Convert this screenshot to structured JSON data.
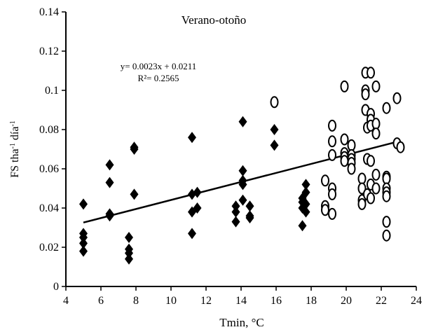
{
  "chart_data": {
    "type": "scatter",
    "title": "Verano-otoño",
    "xlabel": "Tmin, °C",
    "ylabel_parts": [
      "FS tha",
      "-1",
      " día",
      "-1"
    ],
    "xlim": [
      4,
      24
    ],
    "ylim": [
      0,
      0.14
    ],
    "xticks": [
      4,
      6,
      8,
      10,
      12,
      14,
      16,
      18,
      20,
      22,
      24
    ],
    "yticks": [
      0,
      0.02,
      0.04,
      0.06,
      0.08,
      0.1,
      0.12,
      0.14
    ],
    "xtick_labels": [
      "4",
      "6",
      "8",
      "10",
      "12",
      "14",
      "16",
      "18",
      "20",
      "22",
      "24"
    ],
    "ytick_labels": [
      "0",
      "0.02",
      "0.04",
      "0.06",
      "0.08",
      "0.1",
      "0.12",
      "0.14"
    ],
    "grid": false,
    "annotation": {
      "equation": "y= 0.0023x + 0.0211",
      "r2": "R²= 0.2565"
    },
    "trendline": {
      "slope": 0.0023,
      "intercept": 0.0211,
      "x_range": [
        5,
        23
      ]
    },
    "series": [
      {
        "marker": "diamond-filled",
        "points": [
          [
            5.0,
            0.042
          ],
          [
            5.0,
            0.027
          ],
          [
            5.0,
            0.025
          ],
          [
            5.0,
            0.022
          ],
          [
            5.0,
            0.018
          ],
          [
            6.5,
            0.062
          ],
          [
            6.5,
            0.053
          ],
          [
            6.5,
            0.037
          ],
          [
            6.5,
            0.036
          ],
          [
            7.6,
            0.025
          ],
          [
            7.6,
            0.019
          ],
          [
            7.6,
            0.017
          ],
          [
            7.6,
            0.014
          ],
          [
            7.9,
            0.071
          ],
          [
            7.9,
            0.07
          ],
          [
            7.9,
            0.047
          ],
          [
            11.2,
            0.076
          ],
          [
            11.2,
            0.047
          ],
          [
            11.2,
            0.038
          ],
          [
            11.2,
            0.027
          ],
          [
            11.5,
            0.048
          ],
          [
            11.5,
            0.04
          ],
          [
            13.7,
            0.041
          ],
          [
            13.7,
            0.038
          ],
          [
            13.7,
            0.033
          ],
          [
            14.1,
            0.084
          ],
          [
            14.1,
            0.059
          ],
          [
            14.1,
            0.054
          ],
          [
            14.1,
            0.052
          ],
          [
            14.1,
            0.044
          ],
          [
            14.5,
            0.041
          ],
          [
            14.5,
            0.036
          ],
          [
            14.5,
            0.035
          ],
          [
            15.9,
            0.08
          ],
          [
            15.9,
            0.072
          ],
          [
            17.5,
            0.045
          ],
          [
            17.5,
            0.043
          ],
          [
            17.5,
            0.04
          ],
          [
            17.5,
            0.031
          ],
          [
            17.7,
            0.052
          ],
          [
            17.7,
            0.048
          ],
          [
            17.7,
            0.042
          ],
          [
            17.7,
            0.038
          ]
        ]
      },
      {
        "marker": "circle-open",
        "points": [
          [
            15.9,
            0.094
          ],
          [
            18.8,
            0.054
          ],
          [
            18.8,
            0.041
          ],
          [
            18.8,
            0.039
          ],
          [
            19.2,
            0.082
          ],
          [
            19.2,
            0.074
          ],
          [
            19.2,
            0.067
          ],
          [
            19.2,
            0.05
          ],
          [
            19.2,
            0.047
          ],
          [
            19.2,
            0.037
          ],
          [
            19.9,
            0.102
          ],
          [
            19.9,
            0.075
          ],
          [
            19.9,
            0.068
          ],
          [
            19.9,
            0.066
          ],
          [
            19.9,
            0.064
          ],
          [
            20.3,
            0.072
          ],
          [
            20.3,
            0.067
          ],
          [
            20.3,
            0.065
          ],
          [
            20.3,
            0.063
          ],
          [
            20.3,
            0.06
          ],
          [
            20.9,
            0.055
          ],
          [
            20.9,
            0.05
          ],
          [
            20.9,
            0.044
          ],
          [
            20.9,
            0.042
          ],
          [
            21.1,
            0.109
          ],
          [
            21.1,
            0.1
          ],
          [
            21.1,
            0.098
          ],
          [
            21.1,
            0.09
          ],
          [
            21.2,
            0.081
          ],
          [
            21.2,
            0.065
          ],
          [
            21.2,
            0.047
          ],
          [
            21.4,
            0.109
          ],
          [
            21.4,
            0.088
          ],
          [
            21.4,
            0.085
          ],
          [
            21.4,
            0.082
          ],
          [
            21.4,
            0.064
          ],
          [
            21.4,
            0.052
          ],
          [
            21.4,
            0.045
          ],
          [
            21.7,
            0.102
          ],
          [
            21.7,
            0.083
          ],
          [
            21.7,
            0.078
          ],
          [
            21.7,
            0.057
          ],
          [
            21.7,
            0.05
          ],
          [
            22.3,
            0.091
          ],
          [
            22.3,
            0.056
          ],
          [
            22.3,
            0.055
          ],
          [
            22.3,
            0.05
          ],
          [
            22.3,
            0.048
          ],
          [
            22.3,
            0.046
          ],
          [
            22.3,
            0.033
          ],
          [
            22.3,
            0.026
          ],
          [
            22.9,
            0.096
          ],
          [
            22.9,
            0.073
          ],
          [
            23.1,
            0.071
          ]
        ]
      }
    ]
  }
}
